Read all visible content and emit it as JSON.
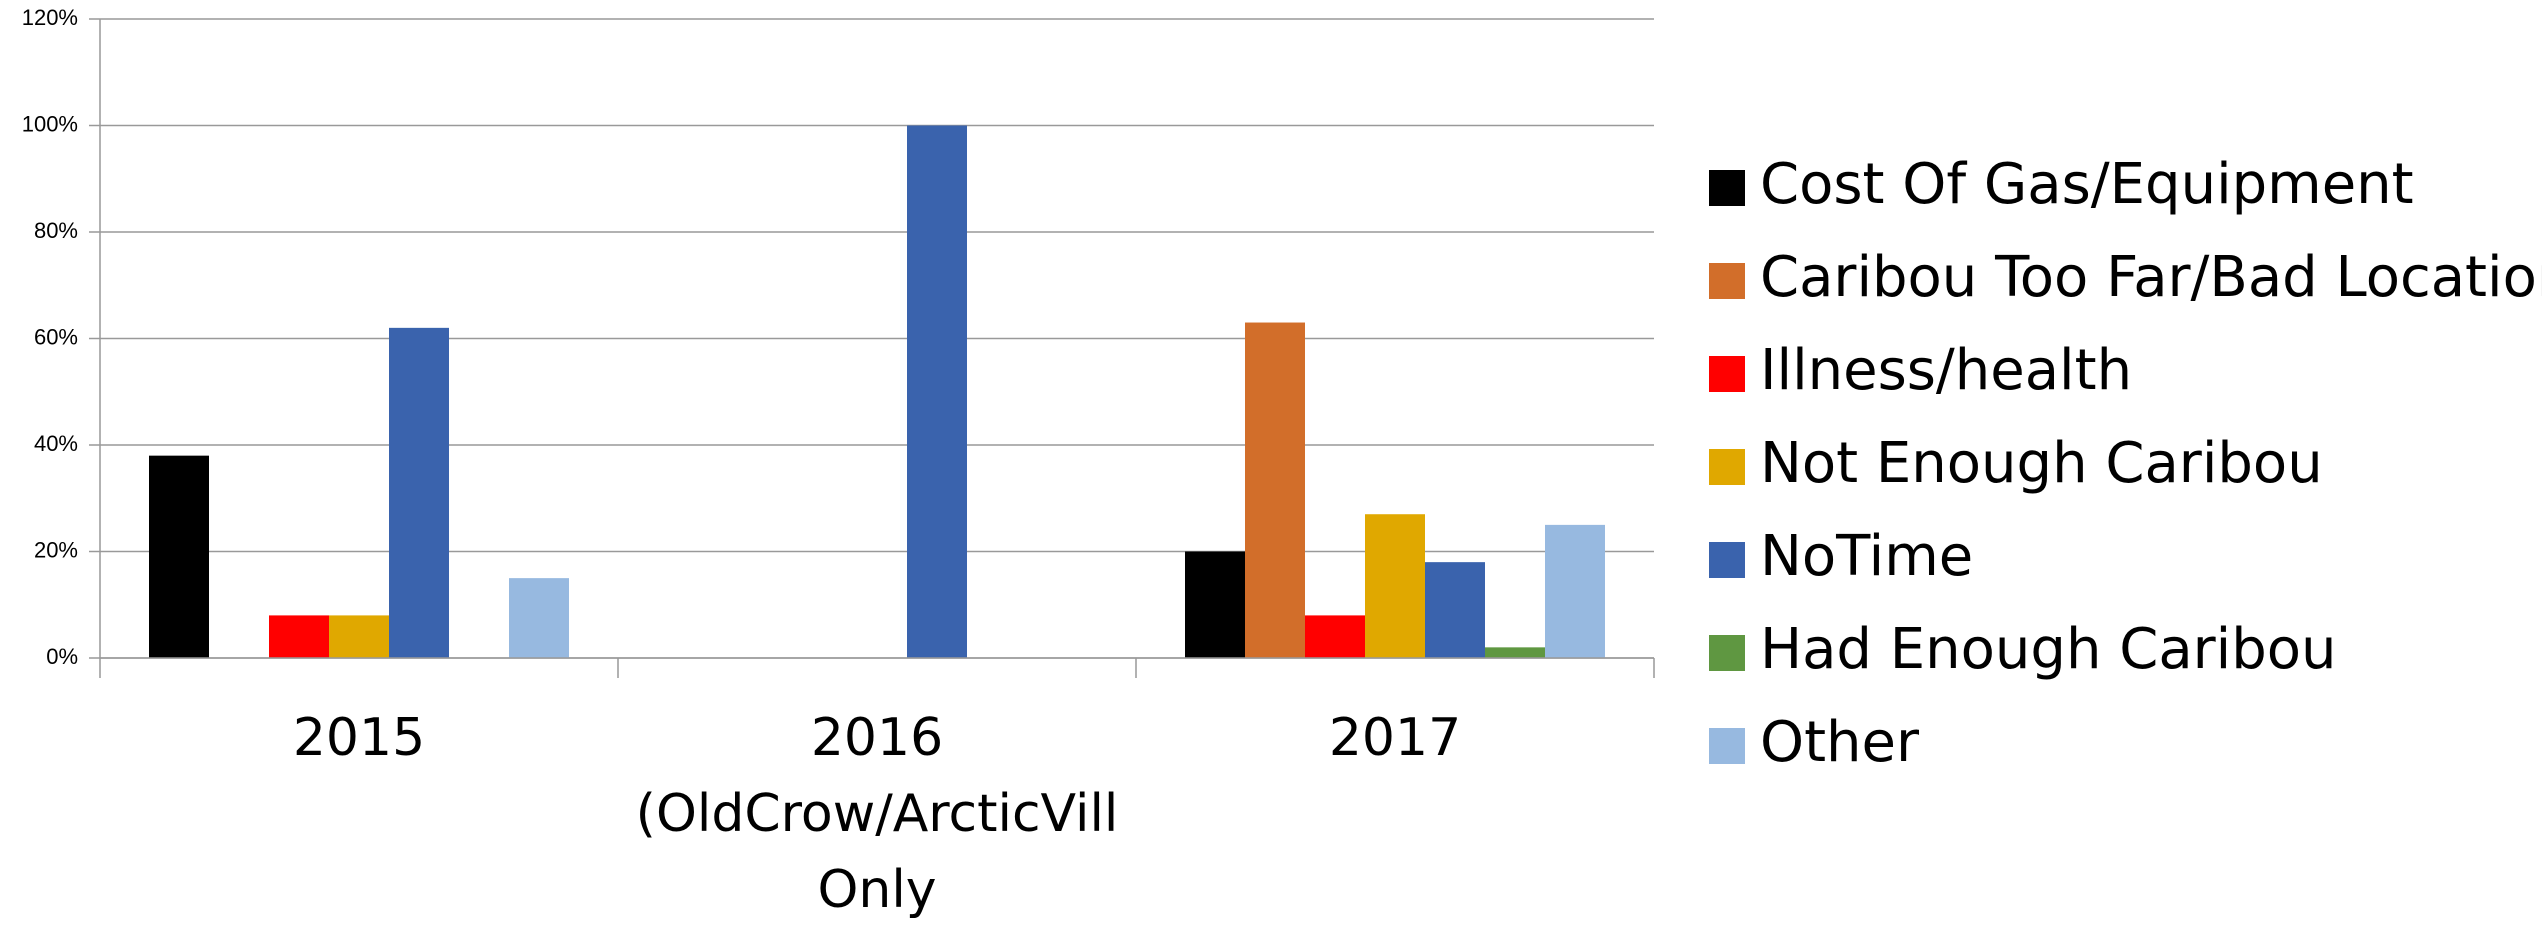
{
  "chart_data": {
    "type": "bar",
    "categories": [
      "2015",
      "2016 (OldCrow/ArcticVill Only",
      "2017"
    ],
    "series": [
      {
        "name": "Cost Of Gas/Equipment",
        "color": "#000000",
        "values": [
          38,
          0,
          20
        ]
      },
      {
        "name": "Caribou Too Far/Bad Location",
        "color": "#d26e2a",
        "values": [
          0,
          0,
          63
        ]
      },
      {
        "name": "Illness/health",
        "color": "#ff0000",
        "values": [
          8,
          0,
          8
        ]
      },
      {
        "name": "Not Enough Caribou",
        "color": "#e0a800",
        "values": [
          8,
          0,
          27
        ]
      },
      {
        "name": "NoTime",
        "color": "#3a63ad",
        "values": [
          62,
          100,
          18
        ]
      },
      {
        "name": "Had Enough Caribou",
        "color": "#5f9741",
        "values": [
          0,
          0,
          2
        ]
      },
      {
        "name": "Other",
        "color": "#97b9e0",
        "values": [
          15,
          0,
          25
        ]
      }
    ],
    "ylim": [
      0,
      120
    ],
    "yticks": [
      {
        "value": 0,
        "label": "0%"
      },
      {
        "value": 20,
        "label": "20%"
      },
      {
        "value": 40,
        "label": "40%"
      },
      {
        "value": 60,
        "label": "60%"
      },
      {
        "value": 80,
        "label": "80%"
      },
      {
        "value": 100,
        "label": "100%"
      },
      {
        "value": 120,
        "label": "120%"
      }
    ],
    "grid": true,
    "legend": "right"
  }
}
